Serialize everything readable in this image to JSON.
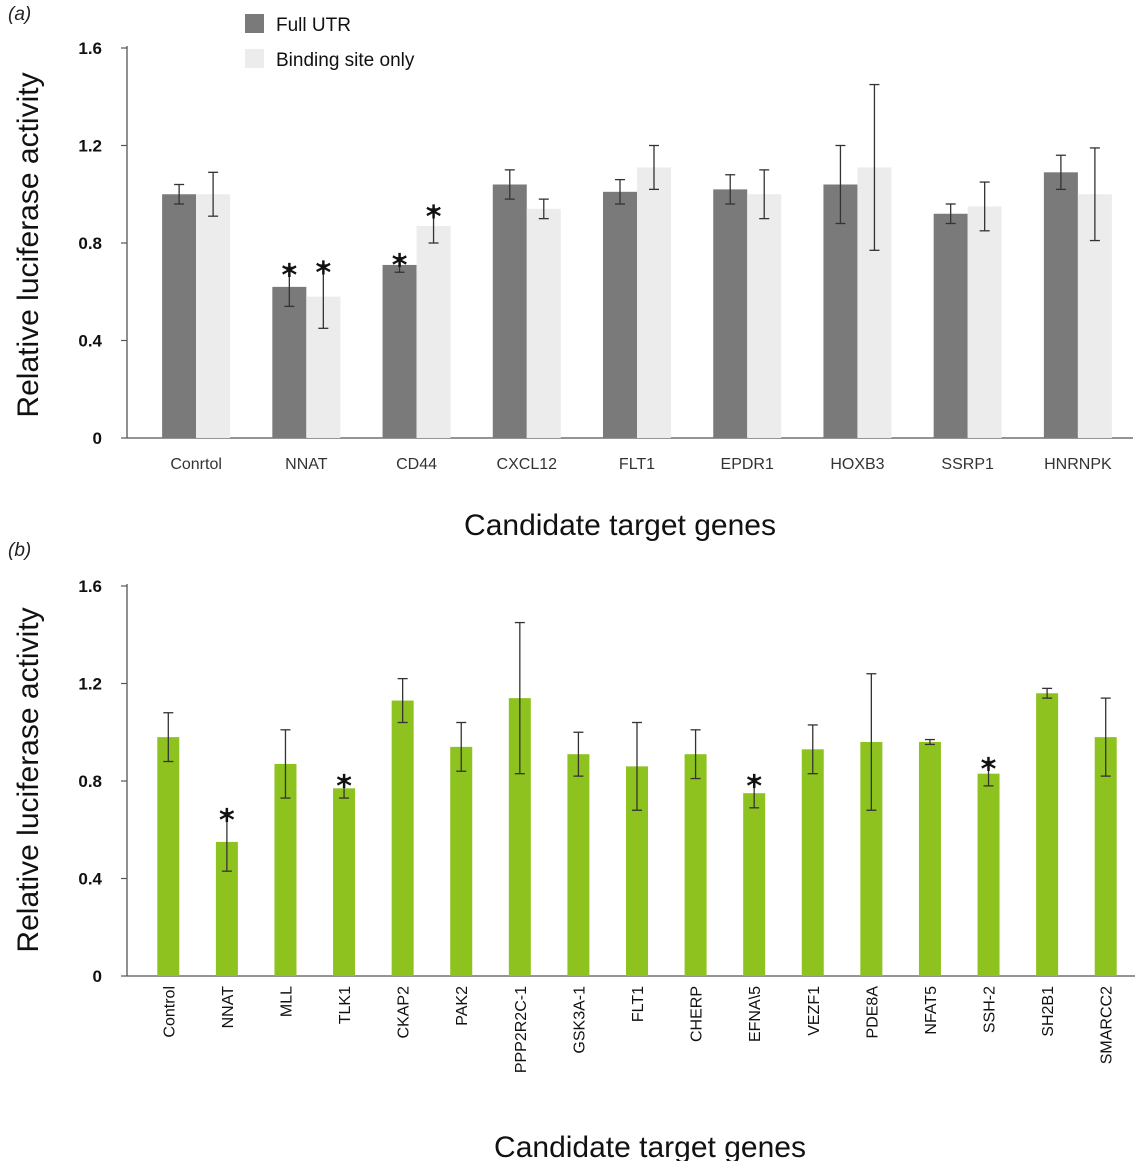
{
  "chart_data": [
    {
      "panel": "(a)",
      "type": "bar",
      "ylabel": "Relative luciferase activity",
      "xlabel": "Candidate target genes",
      "ylim": [
        0,
        1.6
      ],
      "yticks": [
        "0",
        "0.4",
        "0.8",
        "1.2",
        "1.6"
      ],
      "legend_position": "top-left",
      "categories": [
        "Conrtol",
        "NNAT",
        "CD44",
        "CXCL12",
        "FLT1",
        "EPDR1",
        "HOXB3",
        "SSRP1",
        "HNRNPK"
      ],
      "series": [
        {
          "name": "Full UTR",
          "color": "#7a7a7a",
          "values": [
            1.0,
            0.62,
            0.71,
            1.04,
            1.01,
            1.02,
            1.04,
            0.92,
            1.09
          ],
          "errors": [
            0.04,
            0.08,
            0.03,
            0.06,
            0.05,
            0.06,
            0.16,
            0.04,
            0.07
          ],
          "significant": [
            false,
            true,
            true,
            false,
            false,
            false,
            false,
            false,
            false
          ]
        },
        {
          "name": "Binding site only",
          "color": "#ececec",
          "values": [
            1.0,
            0.58,
            0.87,
            0.94,
            1.11,
            1.0,
            1.11,
            0.95,
            1.0
          ],
          "errors": [
            0.09,
            0.13,
            0.07,
            0.04,
            0.09,
            0.1,
            0.34,
            0.1,
            0.19
          ],
          "significant": [
            false,
            true,
            true,
            false,
            false,
            false,
            false,
            false,
            false
          ]
        }
      ]
    },
    {
      "panel": "(b)",
      "type": "bar",
      "ylabel": "Relative luciferase activity",
      "xlabel": "Candidate target genes",
      "ylim": [
        0,
        1.6
      ],
      "yticks": [
        "0",
        "0.4",
        "0.8",
        "1.2",
        "1.6"
      ],
      "categories": [
        "Control",
        "NNAT",
        "MLL",
        "TLK1",
        "CKAP2",
        "PAK2",
        "PPP2R2C-1",
        "GSK3A-1",
        "FLT1",
        "CHERP",
        "EFNA\\5",
        "VEZF1",
        "PDE8A",
        "NFAT5",
        "SSH-2",
        "SH2B1",
        "SMARCC2"
      ],
      "series": [
        {
          "color": "#8dc21f",
          "values": [
            0.98,
            0.55,
            0.87,
            0.77,
            1.13,
            0.94,
            1.14,
            0.91,
            0.86,
            0.91,
            0.75,
            0.93,
            0.96,
            0.96,
            0.83,
            1.16,
            0.98
          ],
          "errors": [
            0.1,
            0.12,
            0.14,
            0.04,
            0.09,
            0.1,
            0.31,
            0.09,
            0.18,
            0.1,
            0.06,
            0.1,
            0.28,
            0.01,
            0.05,
            0.02,
            0.16
          ],
          "significant": [
            false,
            true,
            false,
            true,
            false,
            false,
            false,
            false,
            false,
            false,
            true,
            false,
            false,
            false,
            true,
            false,
            false
          ]
        }
      ]
    }
  ],
  "colors": {
    "axis": "#555555",
    "error_bar": "#333333"
  }
}
